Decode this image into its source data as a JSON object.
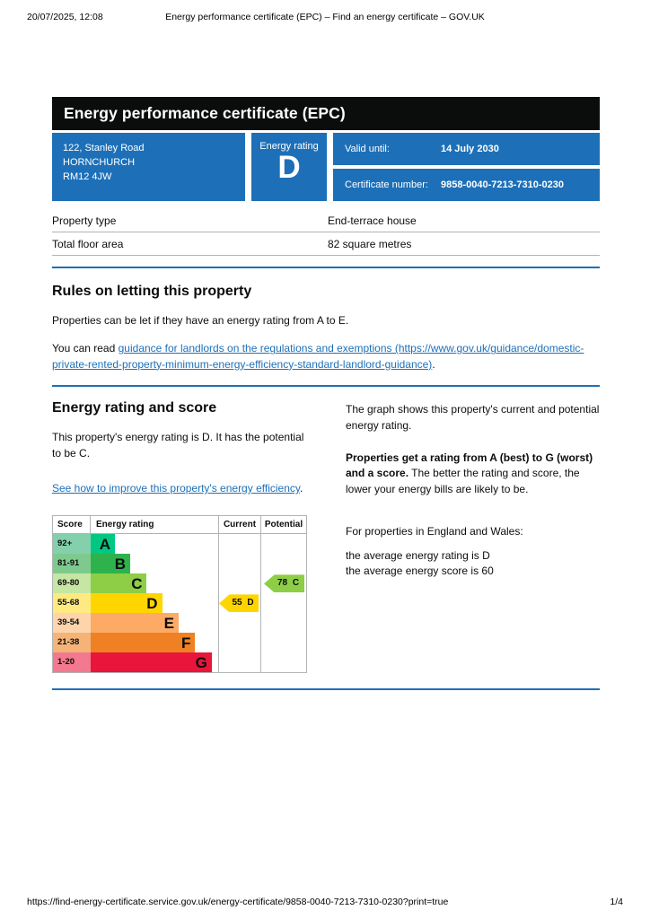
{
  "print_header": {
    "datetime": "20/07/2025, 12:08",
    "title": "Energy performance certificate (EPC) – Find an energy certificate – GOV.UK"
  },
  "print_footer": {
    "url": "https://find-energy-certificate.service.gov.uk/energy-certificate/9858-0040-7213-7310-0230?print=true",
    "page_number": "1/4"
  },
  "banner": {
    "title": "Energy performance certificate (EPC)"
  },
  "summary": {
    "address_lines": [
      "122, Stanley Road",
      "HORNCHURCH",
      "RM12 4JW"
    ],
    "energy_rating_label": "Energy rating",
    "energy_rating_value": "D",
    "valid_until_label": "Valid until:",
    "valid_until_value": "14 July 2030",
    "certificate_number_label": "Certificate number:",
    "certificate_number_value": "9858-0040-7213-7310-0230"
  },
  "property_details": {
    "rows": [
      {
        "label": "Property type",
        "value": "End-terrace house"
      },
      {
        "label": "Total floor area",
        "value": "82 square metres"
      }
    ]
  },
  "rules_section": {
    "heading": "Rules on letting this property",
    "para1": "Properties can be let if they have an energy rating from A to E.",
    "para2_prefix": "You can read ",
    "para2_link": "guidance for landlords on the regulations and exemptions (https://www.gov.uk/guidance/domestic-private-rented-property-minimum-energy-efficiency-standard-landlord-guidance)",
    "para2_suffix": "."
  },
  "rating_section": {
    "heading": "Energy rating and score",
    "para1": "This property's energy rating is D. It has the potential to be C.",
    "improve_link": "See how to improve this property's energy efficiency",
    "improve_suffix": ".",
    "right_para1": "The graph shows this property's current and potential energy rating.",
    "right_para2_bold": "Properties get a rating from A (best) to G (worst) and a score.",
    "right_para2_rest": " The better the rating and score, the lower your energy bills are likely to be.",
    "right_para3": "For properties in England and Wales:",
    "right_para4_line1": "the average energy rating is D",
    "right_para4_line2": "the average energy score is 60"
  },
  "chart_data": {
    "type": "bar",
    "title": "EPC energy rating bands with current and potential scores",
    "columns": [
      "Score",
      "Energy rating",
      "Current",
      "Potential"
    ],
    "bands": [
      {
        "score_range": "92+",
        "letter": "A",
        "color": "#00c781",
        "tint": "#84d0ac",
        "width_pct": 19
      },
      {
        "score_range": "81-91",
        "letter": "B",
        "color": "#2eb34c",
        "tint": "#7eca8e",
        "width_pct": 31
      },
      {
        "score_range": "69-80",
        "letter": "C",
        "color": "#8dce46",
        "tint": "#c6e6a3",
        "width_pct": 44
      },
      {
        "score_range": "55-68",
        "letter": "D",
        "color": "#ffd500",
        "tint": "#ffea81",
        "width_pct": 56
      },
      {
        "score_range": "39-54",
        "letter": "E",
        "color": "#fcaa65",
        "tint": "#fdd4ab",
        "width_pct": 69
      },
      {
        "score_range": "21-38",
        "letter": "F",
        "color": "#ef8023",
        "tint": "#f5b378",
        "width_pct": 82
      },
      {
        "score_range": "1-20",
        "letter": "G",
        "color": "#e9153b",
        "tint": "#f2798f",
        "width_pct": 95
      }
    ],
    "current": {
      "score": 55,
      "band_letter": "D",
      "label": "55 D",
      "color": "#ffd500"
    },
    "potential": {
      "score": 78,
      "band_letter": "C",
      "label": "78 C",
      "color": "#8dce46"
    }
  },
  "colors": {
    "brand_blue": "#1d70b8",
    "banner_black": "#0b0c0c",
    "border_gray": "#b1b4b6"
  }
}
